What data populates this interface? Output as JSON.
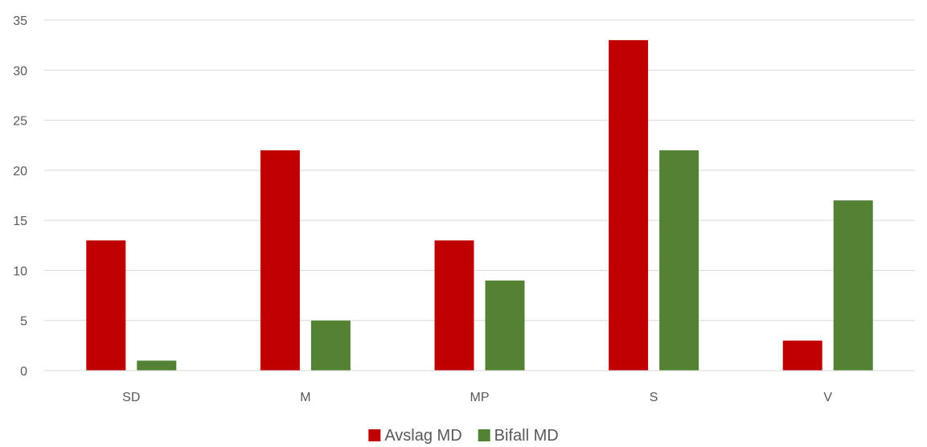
{
  "chart_data": {
    "type": "bar",
    "categories": [
      "SD",
      "M",
      "MP",
      "S",
      "V"
    ],
    "series": [
      {
        "name": "Avslag MD",
        "values": [
          13,
          22,
          13,
          33,
          3
        ],
        "color": "#C00000"
      },
      {
        "name": "Bifall MD",
        "values": [
          1,
          5,
          9,
          22,
          17
        ],
        "color": "#548235"
      }
    ],
    "ylim": [
      0,
      35
    ],
    "yticks": [
      0,
      5,
      10,
      15,
      20,
      25,
      30,
      35
    ],
    "grid": true,
    "legend_position": "bottom",
    "title": "",
    "xlabel": "",
    "ylabel": ""
  }
}
